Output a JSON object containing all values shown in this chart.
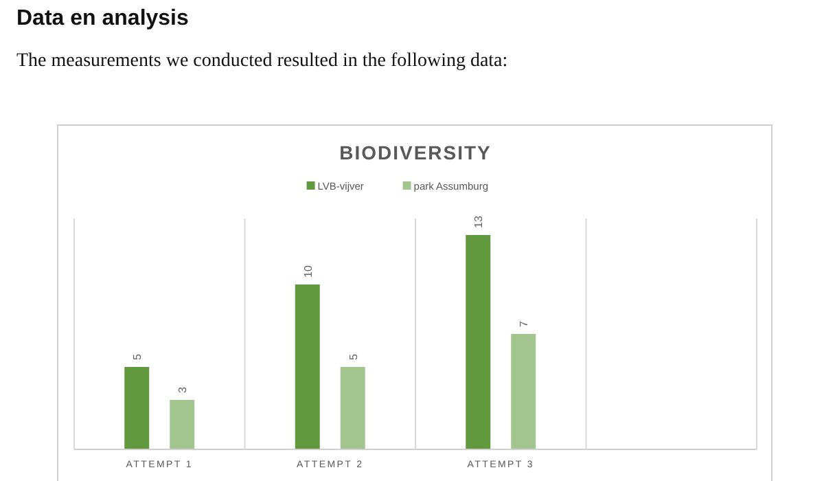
{
  "chart_data": {
    "type": "bar",
    "title": "BIODIVERSITY",
    "annotations": [
      "Data en analysis",
      "The measurements we conducted resulted in the following data:"
    ],
    "categories": [
      "ATTEMPT 1",
      "ATTEMPT 2",
      "ATTEMPT 3",
      null
    ],
    "series": [
      {
        "name": "LVB-vijver",
        "color": "#62993e",
        "values": [
          5,
          10,
          13,
          null
        ]
      },
      {
        "name": "park Assumburg",
        "color": "#a2c590",
        "values": [
          3,
          5,
          7,
          null
        ]
      }
    ],
    "ylim": [
      0,
      14
    ],
    "data_labels": true,
    "grid": "x",
    "legend": "top",
    "tick_labels": "x"
  }
}
